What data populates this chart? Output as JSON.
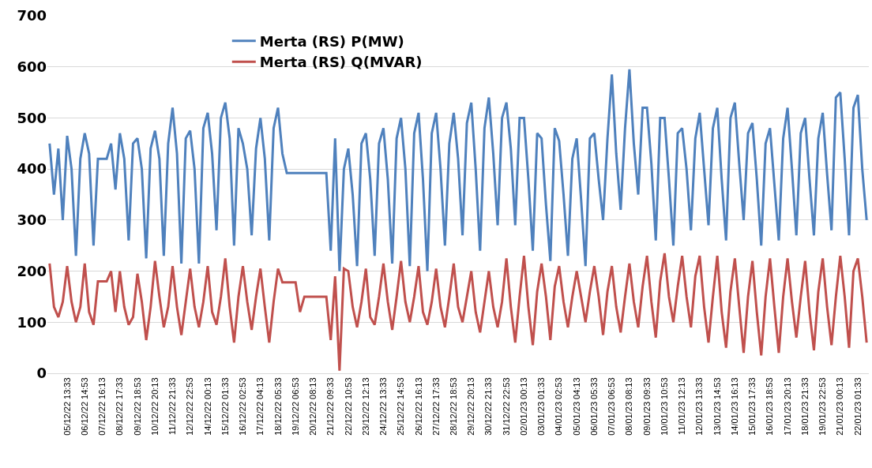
{
  "chart_data": {
    "type": "line",
    "categories": [
      null,
      null,
      null,
      null,
      "05/12/22 13:33",
      null,
      null,
      null,
      "06/12/22 14:53",
      null,
      null,
      null,
      "07/12/22 16:13",
      null,
      null,
      null,
      "08/12/22 17:33",
      null,
      null,
      null,
      "09/12/22 18:53",
      null,
      null,
      null,
      "10/12/22 20:13",
      null,
      null,
      null,
      "11/12/22 21:33",
      null,
      null,
      null,
      "12/12/22 22:53",
      null,
      null,
      null,
      "14/12/22 00:13",
      null,
      null,
      null,
      "15/12/22 01:33",
      null,
      null,
      null,
      "16/12/22 02:53",
      null,
      null,
      null,
      "17/12/22 04:13",
      null,
      null,
      null,
      "18/12/22 05:33",
      null,
      null,
      null,
      "19/12/22 06:53",
      null,
      null,
      null,
      "20/12/22 08:13",
      null,
      null,
      null,
      "21/12/22 09:33",
      null,
      null,
      null,
      "22/12/22 10:53",
      null,
      null,
      null,
      "23/12/22 12:13",
      null,
      null,
      null,
      "24/12/22 13:33",
      null,
      null,
      null,
      "25/12/22 14:53",
      null,
      null,
      null,
      "26/12/22 16:13",
      null,
      null,
      null,
      "27/12/22 17:33",
      null,
      null,
      null,
      "28/12/22 18:53",
      null,
      null,
      null,
      "29/12/22 20:13",
      null,
      null,
      null,
      "30/12/22 21:33",
      null,
      null,
      null,
      "31/12/22 22:53",
      null,
      null,
      null,
      "02/01/23 00:13",
      null,
      null,
      null,
      "03/01/23 01:33",
      null,
      null,
      null,
      "04/01/23 02:53",
      null,
      null,
      null,
      "05/01/23 04:13",
      null,
      null,
      null,
      "06/01/23 05:33",
      null,
      null,
      null,
      "07/01/23 06:53",
      null,
      null,
      null,
      "08/01/23 08:13",
      null,
      null,
      null,
      "09/01/23 09:33",
      null,
      null,
      null,
      "10/01/23 10:53",
      null,
      null,
      null,
      "11/01/23 12:13",
      null,
      null,
      null,
      "12/01/23 13:33",
      null,
      null,
      null,
      "13/01/23 14:53",
      null,
      null,
      null,
      "14/01/23 16:13",
      null,
      null,
      null,
      "15/01/23 17:33",
      null,
      null,
      null,
      "16/01/23 18:53",
      null,
      null,
      null,
      "17/01/23 20:13",
      null,
      null,
      null,
      "18/01/23 21:33",
      null,
      null,
      null,
      "19/01/23 22:53",
      null,
      null,
      null,
      "21/01/23 00:13",
      null,
      null,
      null,
      "22/01/23 01:33",
      null,
      null
    ],
    "series": [
      {
        "name": "Merta (RS) P(MW)",
        "color": "#4f81bd",
        "values": [
          450,
          350,
          440,
          300,
          465,
          400,
          230,
          420,
          470,
          430,
          250,
          420,
          420,
          420,
          450,
          360,
          470,
          420,
          260,
          450,
          460,
          400,
          225,
          440,
          475,
          420,
          230,
          450,
          520,
          430,
          215,
          460,
          475,
          400,
          215,
          480,
          510,
          430,
          280,
          500,
          530,
          460,
          250,
          480,
          450,
          400,
          270,
          440,
          500,
          420,
          260,
          480,
          520,
          430,
          392,
          392,
          392,
          392,
          392,
          392,
          392,
          392,
          392,
          392,
          240,
          460,
          200,
          400,
          440,
          350,
          210,
          450,
          470,
          380,
          230,
          450,
          480,
          380,
          215,
          460,
          500,
          400,
          210,
          470,
          510,
          380,
          200,
          470,
          510,
          400,
          250,
          450,
          510,
          420,
          270,
          490,
          530,
          400,
          240,
          480,
          540,
          430,
          290,
          500,
          530,
          440,
          290,
          500,
          500,
          380,
          240,
          470,
          460,
          330,
          220,
          480,
          455,
          350,
          230,
          420,
          460,
          340,
          210,
          460,
          470,
          380,
          300,
          460,
          585,
          430,
          320,
          480,
          595,
          450,
          350,
          520,
          520,
          410,
          260,
          500,
          500,
          380,
          250,
          470,
          480,
          400,
          280,
          460,
          510,
          400,
          290,
          480,
          520,
          380,
          260,
          500,
          530,
          410,
          300,
          470,
          490,
          380,
          250,
          450,
          480,
          370,
          260,
          460,
          520,
          400,
          270,
          470,
          500,
          380,
          270,
          460,
          510,
          390,
          280,
          540,
          550,
          420,
          270,
          520,
          545,
          400,
          300
        ]
      },
      {
        "name": "Merta (RS) Q(MVAR)",
        "color": "#c0504d",
        "values": [
          215,
          130,
          110,
          140,
          210,
          140,
          100,
          130,
          215,
          120,
          95,
          180,
          180,
          180,
          200,
          120,
          200,
          130,
          95,
          110,
          195,
          140,
          65,
          130,
          220,
          150,
          90,
          130,
          210,
          130,
          75,
          140,
          205,
          130,
          90,
          140,
          210,
          120,
          95,
          150,
          225,
          130,
          60,
          150,
          210,
          140,
          85,
          150,
          205,
          130,
          60,
          140,
          205,
          178,
          178,
          178,
          178,
          120,
          150,
          150,
          150,
          150,
          150,
          150,
          65,
          190,
          5,
          205,
          200,
          130,
          90,
          140,
          205,
          110,
          95,
          150,
          215,
          140,
          85,
          150,
          220,
          140,
          100,
          150,
          210,
          120,
          95,
          140,
          205,
          130,
          90,
          150,
          215,
          130,
          100,
          150,
          200,
          120,
          80,
          140,
          200,
          130,
          90,
          140,
          225,
          130,
          60,
          150,
          230,
          130,
          55,
          160,
          215,
          150,
          65,
          170,
          210,
          140,
          90,
          150,
          200,
          150,
          100,
          160,
          210,
          150,
          75,
          160,
          210,
          130,
          80,
          150,
          215,
          140,
          90,
          170,
          230,
          140,
          70,
          180,
          235,
          150,
          100,
          170,
          230,
          150,
          90,
          190,
          230,
          130,
          60,
          150,
          230,
          120,
          50,
          160,
          225,
          130,
          40,
          150,
          220,
          120,
          35,
          150,
          225,
          130,
          40,
          150,
          225,
          140,
          70,
          150,
          220,
          120,
          45,
          160,
          225,
          130,
          55,
          150,
          230,
          150,
          50,
          200,
          225,
          150,
          60
        ]
      }
    ],
    "ylim": [
      0,
      700
    ],
    "yticks": [
      0,
      100,
      200,
      300,
      400,
      500,
      600,
      700
    ],
    "grid": "y",
    "legend": "top",
    "marker": "none",
    "line_style": "solid"
  }
}
